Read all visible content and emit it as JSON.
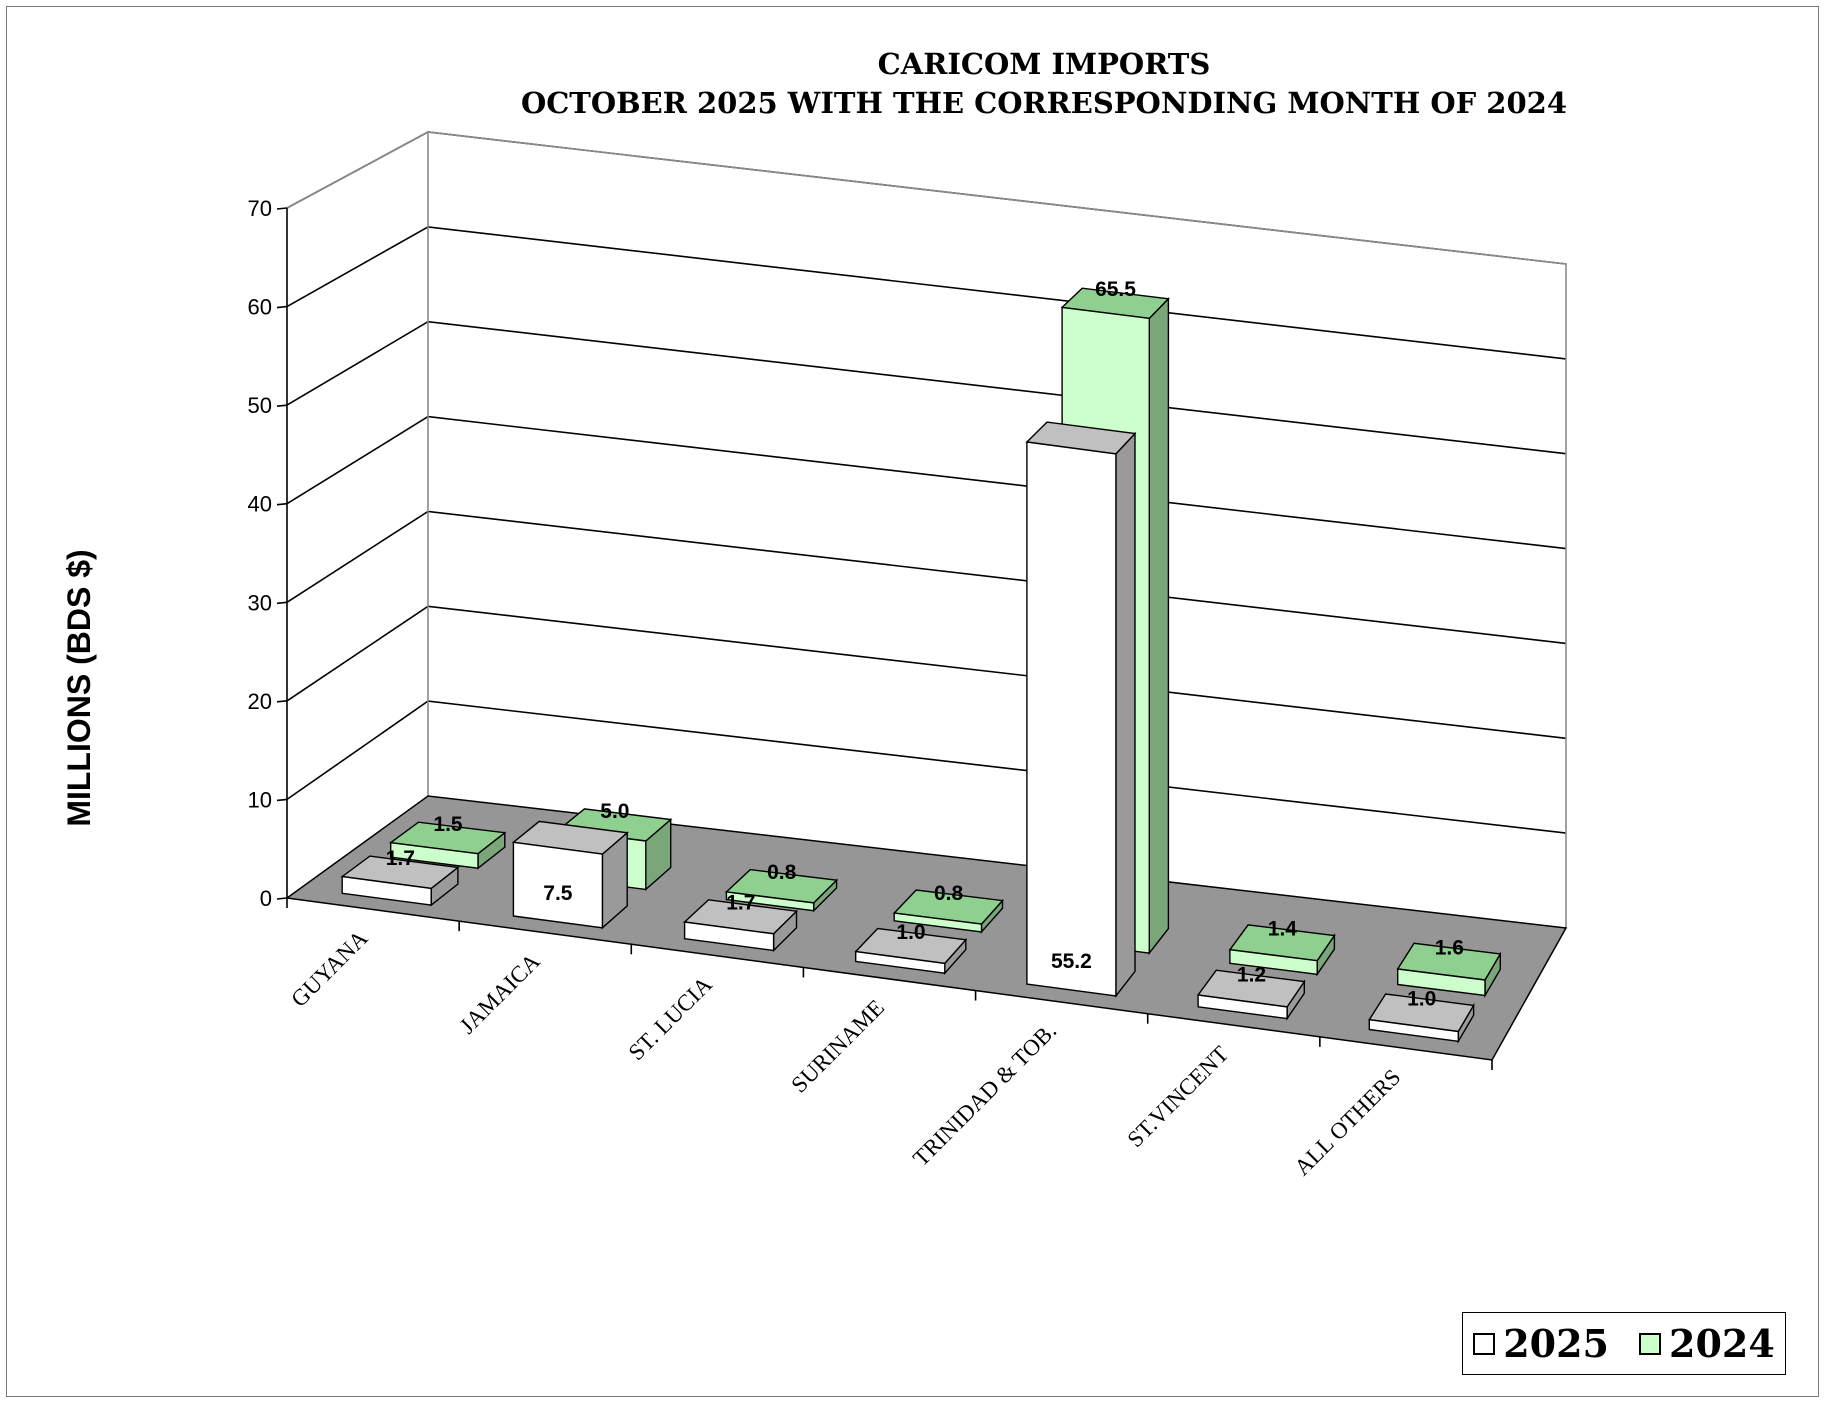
{
  "chart_data": {
    "type": "bar",
    "title": "CARICOM IMPORTS",
    "subtitle": "OCTOBER 2025 WITH THE CORRESPONDING MONTH OF 2024",
    "ylabel": "MILLIONS (BDS $)",
    "xlabel": "",
    "ylim": [
      0,
      70
    ],
    "yticks": [
      "0",
      "10",
      "20",
      "30",
      "40",
      "50",
      "60",
      "70"
    ],
    "categories": [
      "GUYANA",
      "JAMAICA",
      "ST. LUCIA",
      "SURINAME",
      "TRINIDAD & TOB.",
      "ST.VINCENT",
      "ALL OTHERS"
    ],
    "series": [
      {
        "name": "2025",
        "values": [
          1.7,
          7.5,
          1.7,
          1.0,
          55.2,
          1.2,
          1.0
        ],
        "labels": [
          "1.7",
          "7.5",
          "1.7",
          "1.0",
          "55.2",
          "1.2",
          "1.0"
        ],
        "color": "#ffffff"
      },
      {
        "name": "2024",
        "values": [
          1.5,
          5.0,
          0.8,
          0.8,
          65.5,
          1.4,
          1.6
        ],
        "labels": [
          "1.5",
          "5.0",
          "0.8",
          "0.8",
          "65.5",
          "1.4",
          "1.6"
        ],
        "color": "#ccffcc"
      }
    ],
    "grid": true,
    "style": "3d-clustered-column",
    "floor_color": "#969696",
    "legend_position": "bottom-right"
  }
}
